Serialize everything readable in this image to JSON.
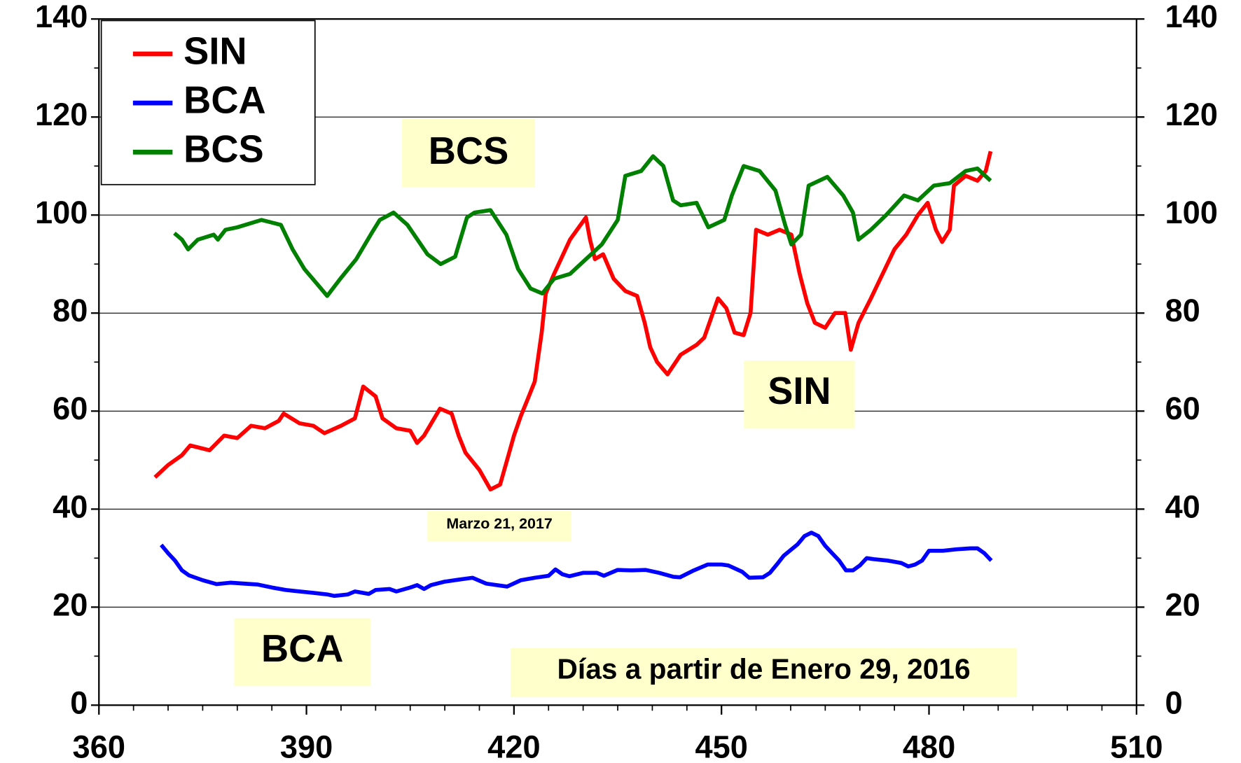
{
  "chart_data": {
    "type": "line",
    "xlabel": "Días a partir de Enero 29, 2016",
    "annotations": [
      "BCS",
      "SIN",
      "BCA",
      "Marzo 21, 2017"
    ],
    "xlim": [
      360,
      510
    ],
    "xticks": [
      360,
      390,
      420,
      450,
      480,
      510
    ],
    "ylim": [
      0,
      140
    ],
    "yticks": [
      0,
      20,
      40,
      60,
      80,
      100,
      120,
      140
    ],
    "y2lim": [
      0,
      140
    ],
    "y2ticks": [
      0,
      20,
      40,
      60,
      80,
      100,
      120,
      140
    ],
    "grid": true,
    "legend": "upper left",
    "series": [
      {
        "name": "SIN",
        "color": "#ff0000",
        "x": [
          368.1,
          370,
          372,
          373.2,
          376,
          378.1,
          380,
          382,
          384,
          386,
          386.7,
          389,
          391,
          392.6,
          395,
          397,
          398.2,
          400,
          401,
          403,
          405,
          406,
          407,
          409.3,
          411,
          412,
          413,
          415,
          416.6,
          418,
          419,
          420,
          421,
          422,
          423,
          424,
          424.6,
          425.8,
          428.1,
          430.4,
          431,
          431.7,
          432.9,
          434.4,
          436.1,
          437.8,
          438.9,
          439.7,
          440.7,
          442.2,
          444.1,
          446.4,
          447.5,
          449.5,
          450.7,
          451.9,
          453.2,
          454.2,
          455,
          456.7,
          458.4,
          460.1,
          461.3,
          462.4,
          463.5,
          465,
          466.4,
          467.9,
          468.7,
          469.8,
          471.6,
          473.3,
          475,
          476.7,
          478.4,
          479.8,
          481,
          481.9,
          483,
          483.6,
          485.3,
          487,
          488.2,
          488.9
        ],
        "values": [
          46.5,
          49,
          51,
          53,
          52,
          55,
          54.5,
          57,
          56.5,
          58,
          59.5,
          57.5,
          57,
          55.5,
          57,
          58.5,
          65,
          63,
          58.5,
          56.5,
          56,
          53.5,
          55,
          60.5,
          59.5,
          55,
          51.5,
          48,
          44,
          45,
          50,
          55,
          59,
          62.5,
          66,
          76,
          84,
          88,
          95,
          99.5,
          95,
          91,
          92,
          87,
          84.5,
          83.5,
          78,
          73,
          70,
          67.5,
          71.5,
          73.5,
          75,
          83,
          81,
          76,
          75.5,
          80,
          97,
          96,
          97,
          96,
          88,
          82,
          78,
          77,
          80,
          80,
          72.5,
          78,
          83,
          88,
          93,
          96,
          100,
          102.5,
          97,
          94.5,
          97,
          106,
          108,
          107,
          109,
          113
        ]
      },
      {
        "name": "BCA",
        "color": "#0000ff",
        "x": [
          369,
          370,
          371,
          372,
          373,
          375,
          377,
          379,
          381,
          383,
          385,
          387,
          389,
          391,
          393,
          394,
          396,
          397,
          399,
          400,
          402,
          403,
          405,
          406,
          407,
          408,
          410,
          412,
          414,
          416,
          418,
          419,
          421,
          423,
          425,
          426,
          427,
          428,
          430,
          432,
          433,
          435,
          437,
          439,
          441,
          443,
          444,
          446,
          448,
          450,
          451,
          453,
          454,
          456,
          457,
          458,
          459,
          461,
          462,
          463,
          464,
          465,
          466,
          467,
          468,
          469,
          470,
          471,
          472,
          474,
          476,
          477,
          478,
          479,
          480,
          482,
          484,
          486,
          487,
          488,
          489
        ],
        "values": [
          32.7,
          31,
          29.5,
          27.5,
          26.5,
          25.5,
          24.7,
          25,
          24.8,
          24.6,
          24,
          23.5,
          23.2,
          22.9,
          22.6,
          22.3,
          22.6,
          23.2,
          22.7,
          23.5,
          23.7,
          23.2,
          24,
          24.5,
          23.7,
          24.5,
          25.2,
          25.6,
          26,
          24.8,
          24.4,
          24.2,
          25.5,
          26,
          26.4,
          27.7,
          26.7,
          26.3,
          27,
          27,
          26.4,
          27.6,
          27.5,
          27.6,
          27,
          26.2,
          26.1,
          27.5,
          28.7,
          28.7,
          28.5,
          27.2,
          26,
          26.1,
          27,
          28.7,
          30.5,
          32.8,
          34.5,
          35.2,
          34.5,
          32.5,
          31,
          29.5,
          27.5,
          27.5,
          28.5,
          30,
          29.8,
          29.5,
          29,
          28.3,
          28.7,
          29.5,
          31.5,
          31.5,
          31.8,
          32,
          32,
          31,
          29.5
        ]
      },
      {
        "name": "BCS",
        "color": "#008000",
        "x": [
          370.9,
          372,
          372.9,
          374.3,
          376.6,
          377.2,
          378.3,
          380,
          383.5,
          386.3,
          388,
          389.7,
          391.5,
          393,
          394.9,
          397.2,
          399.5,
          400.6,
          402.6,
          404.6,
          407.5,
          409.4,
          411.5,
          413.2,
          414.3,
          416.6,
          418.9,
          420.6,
          422.4,
          424.1,
          425.8,
          428.1,
          430.4,
          432.7,
          435,
          436.1,
          438.4,
          440.1,
          441.6,
          443,
          444.1,
          446.4,
          448.1,
          450.4,
          451.5,
          453.2,
          455.5,
          457.8,
          459.2,
          460.1,
          461.5,
          462.6,
          465.3,
          467.6,
          469,
          469.8,
          471.6,
          473.8,
          476.4,
          478.4,
          480.7,
          483,
          485.3,
          487,
          488.9
        ],
        "values": [
          96.3,
          95,
          93,
          95,
          96,
          95,
          97,
          97.5,
          99,
          98,
          93,
          89,
          86,
          83.5,
          87,
          91,
          96.5,
          99,
          100.5,
          98,
          92,
          90,
          91.5,
          99.5,
          100.5,
          101,
          96,
          89,
          85,
          84,
          87,
          88,
          91,
          94,
          99,
          108,
          109,
          112,
          110,
          103,
          102,
          102.5,
          97.5,
          99,
          104,
          110,
          109,
          105,
          98,
          94,
          96,
          106,
          107.8,
          104,
          100.5,
          95,
          97,
          100,
          104,
          103,
          106,
          106.5,
          109,
          109.5,
          107
        ]
      }
    ]
  }
}
